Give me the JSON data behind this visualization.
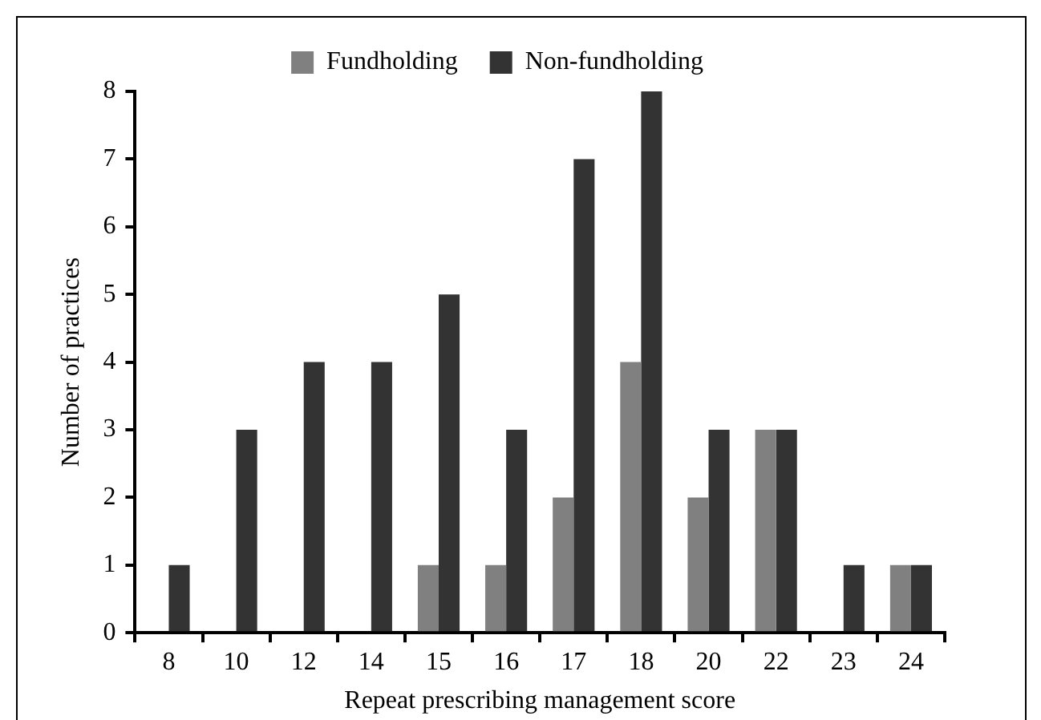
{
  "chart_data": {
    "type": "bar",
    "xlabel": "Repeat prescribing management score",
    "ylabel": "Number of practices",
    "categories": [
      "8",
      "10",
      "12",
      "14",
      "15",
      "16",
      "17",
      "18",
      "20",
      "22",
      "23",
      "24"
    ],
    "series": [
      {
        "name": "Fundholding",
        "color": "#808080",
        "values": [
          0,
          0,
          0,
          0,
          1,
          1,
          2,
          4,
          2,
          3,
          0,
          1
        ]
      },
      {
        "name": "Non-fundholding",
        "color": "#333333",
        "values": [
          1,
          3,
          4,
          4,
          5,
          3,
          7,
          8,
          3,
          3,
          1,
          1
        ]
      }
    ],
    "ylim": [
      0,
      8
    ],
    "yticks": [
      0,
      1,
      2,
      3,
      4,
      5,
      6,
      7,
      8
    ],
    "grid": false,
    "legend": "top"
  }
}
